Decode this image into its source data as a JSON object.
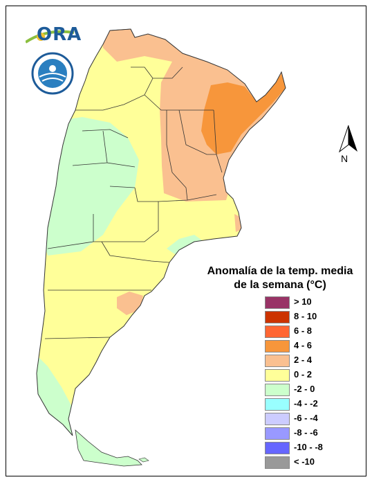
{
  "logo": {
    "text": "ORA",
    "accent_color": "#1d5b99"
  },
  "seal": {
    "name": "servicio-meteorologico-seal-icon"
  },
  "north_arrow": {
    "label": "N"
  },
  "legend": {
    "title_line1": "Anomalía de la temp. media",
    "title_line2": "de la semana (°C)",
    "items": [
      {
        "label": "> 10",
        "color": "#993366"
      },
      {
        "label": "8 - 10",
        "color": "#cc3300"
      },
      {
        "label": "6 - 8",
        "color": "#ff6633"
      },
      {
        "label": "4 - 6",
        "color": "#f7963b"
      },
      {
        "label": "2 - 4",
        "color": "#fac090"
      },
      {
        "label": "0 - 2",
        "color": "#ffff99"
      },
      {
        "label": "-2 - 0",
        "color": "#ccffcc"
      },
      {
        "label": "-4 - -2",
        "color": "#99ffff"
      },
      {
        "label": "-6 - -4",
        "color": "#ccccff"
      },
      {
        "label": "-8 - -6",
        "color": "#9999ff"
      },
      {
        "label": "-10 - -8",
        "color": "#6666ff"
      },
      {
        "label": "< -10",
        "color": "#999999"
      }
    ]
  }
}
